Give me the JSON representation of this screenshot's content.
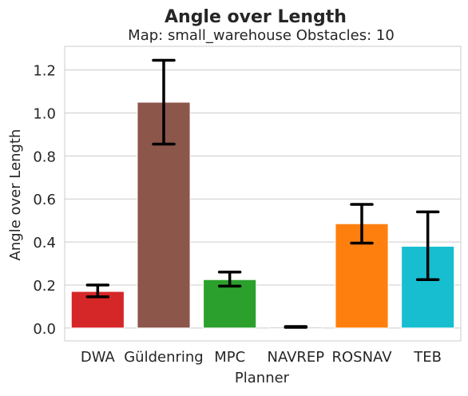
{
  "chart_data": {
    "type": "bar",
    "title": "Angle over Length",
    "subtitle": "Map: small_warehouse Obstacles: 10",
    "xlabel": "Planner",
    "ylabel": "Angle over Length",
    "categories": [
      "DWA",
      "Güldenring",
      "MPC",
      "NAVREP",
      "ROSNAV",
      "TEB"
    ],
    "values": [
      0.17,
      1.05,
      0.225,
      0.005,
      0.485,
      0.38
    ],
    "error_low": [
      0.145,
      0.855,
      0.195,
      0.003,
      0.395,
      0.225
    ],
    "error_high": [
      0.2,
      1.245,
      0.26,
      0.007,
      0.575,
      0.54
    ],
    "colors": [
      "#d62728",
      "#8c564b",
      "#2ca02c",
      "#7f7f7f",
      "#ff7f0e",
      "#17becf"
    ],
    "ylim": [
      -0.06,
      1.31
    ],
    "yticks": [
      "0.0",
      "0.2",
      "0.4",
      "0.6",
      "0.8",
      "1.0",
      "1.2"
    ],
    "grid": "horizontal",
    "legend": "none"
  }
}
